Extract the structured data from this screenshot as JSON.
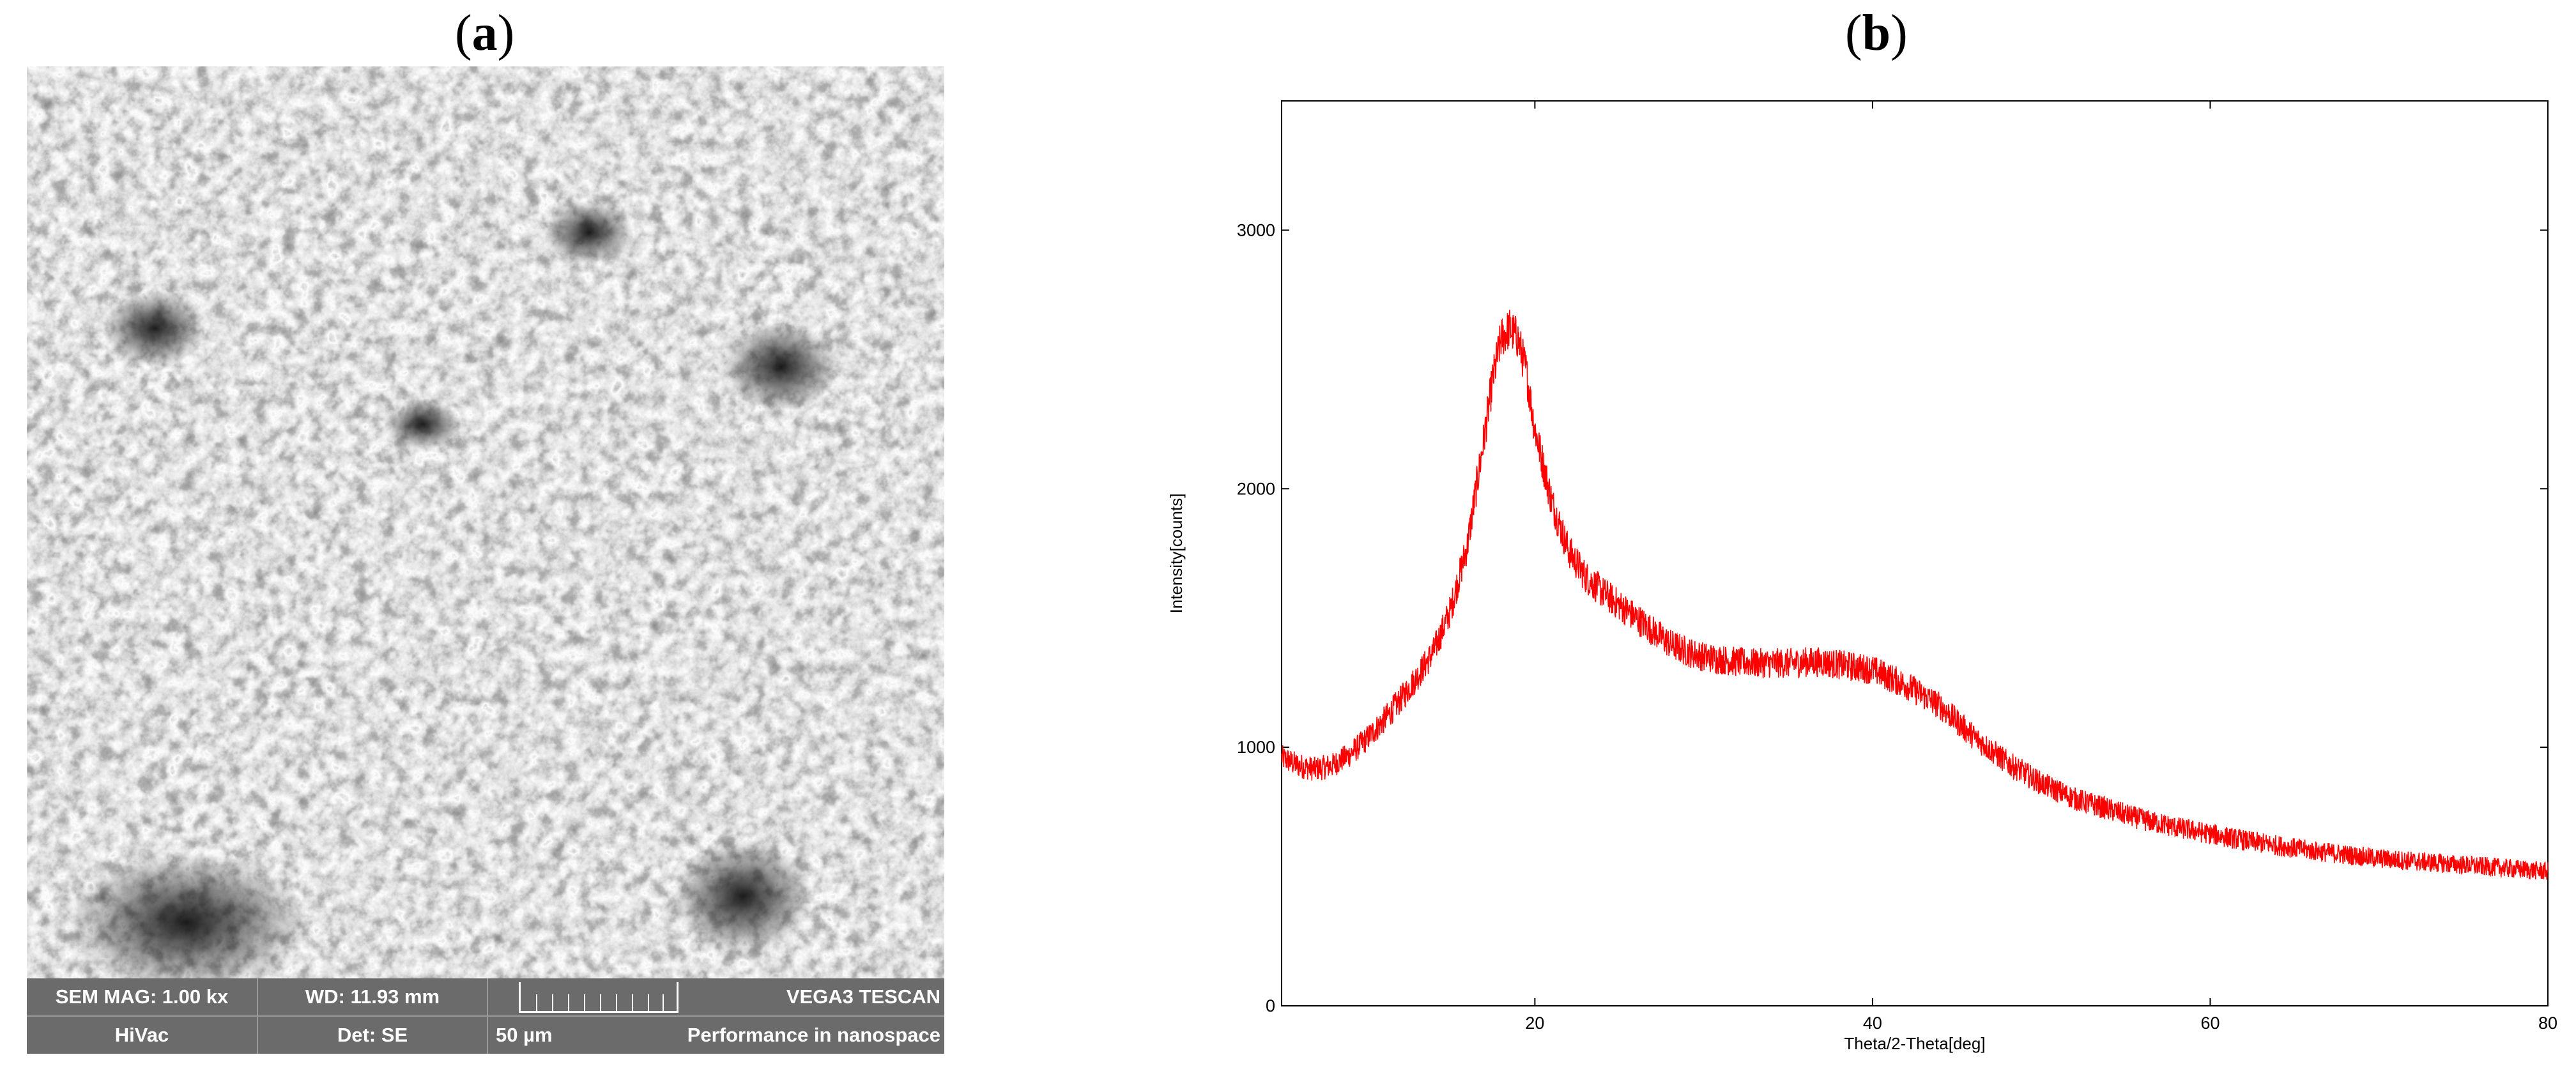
{
  "panel_a": {
    "label_open": "(",
    "label_letter": "a",
    "label_close": ")",
    "sem_info": {
      "magnification": "SEM MAG: 1.00 kx",
      "working_distance": "WD: 11.93 mm",
      "instrument": "VEGA3 TESCAN",
      "vacuum_mode": "HiVac",
      "detector": "Det: SE",
      "scale_value": "50 µm",
      "slogan": "Performance in nanospace"
    }
  },
  "panel_b": {
    "label_open": "(",
    "label_letter": "b",
    "label_close": ")"
  },
  "chart_data": {
    "type": "line",
    "title": "",
    "xlabel": "Theta/2-Theta[deg]",
    "ylabel": "Intensity[counts]",
    "xlim": [
      5,
      80
    ],
    "ylim": [
      0,
      3500
    ],
    "xticks": [
      20,
      40,
      60,
      80
    ],
    "yticks": [
      0,
      1000,
      2000,
      3000
    ],
    "grid": false,
    "legend": "none",
    "series": [
      {
        "color": "#ff0000",
        "x": [
          5,
          6,
          7,
          8,
          9,
          10,
          11,
          12,
          13,
          14,
          15,
          16,
          17,
          17.5,
          18,
          18.5,
          19,
          19.5,
          20,
          21,
          22,
          23,
          24,
          25,
          26,
          27,
          28,
          29,
          30,
          31,
          32,
          33,
          34,
          35,
          36,
          37,
          38,
          39,
          40,
          41,
          42,
          43,
          44,
          45,
          46,
          47,
          48,
          49,
          50,
          52,
          54,
          56,
          58,
          60,
          62,
          64,
          66,
          68,
          70,
          72,
          74,
          76,
          78,
          80
        ],
        "y": [
          960,
          930,
          915,
          930,
          970,
          1030,
          1100,
          1180,
          1270,
          1370,
          1530,
          1780,
          2200,
          2420,
          2580,
          2620,
          2580,
          2450,
          2230,
          1950,
          1760,
          1660,
          1600,
          1550,
          1500,
          1450,
          1400,
          1370,
          1350,
          1340,
          1330,
          1325,
          1325,
          1325,
          1330,
          1330,
          1320,
          1310,
          1300,
          1270,
          1240,
          1200,
          1160,
          1100,
          1040,
          990,
          940,
          900,
          860,
          800,
          760,
          720,
          690,
          665,
          640,
          620,
          600,
          585,
          570,
          560,
          550,
          540,
          530,
          520
        ]
      }
    ]
  }
}
